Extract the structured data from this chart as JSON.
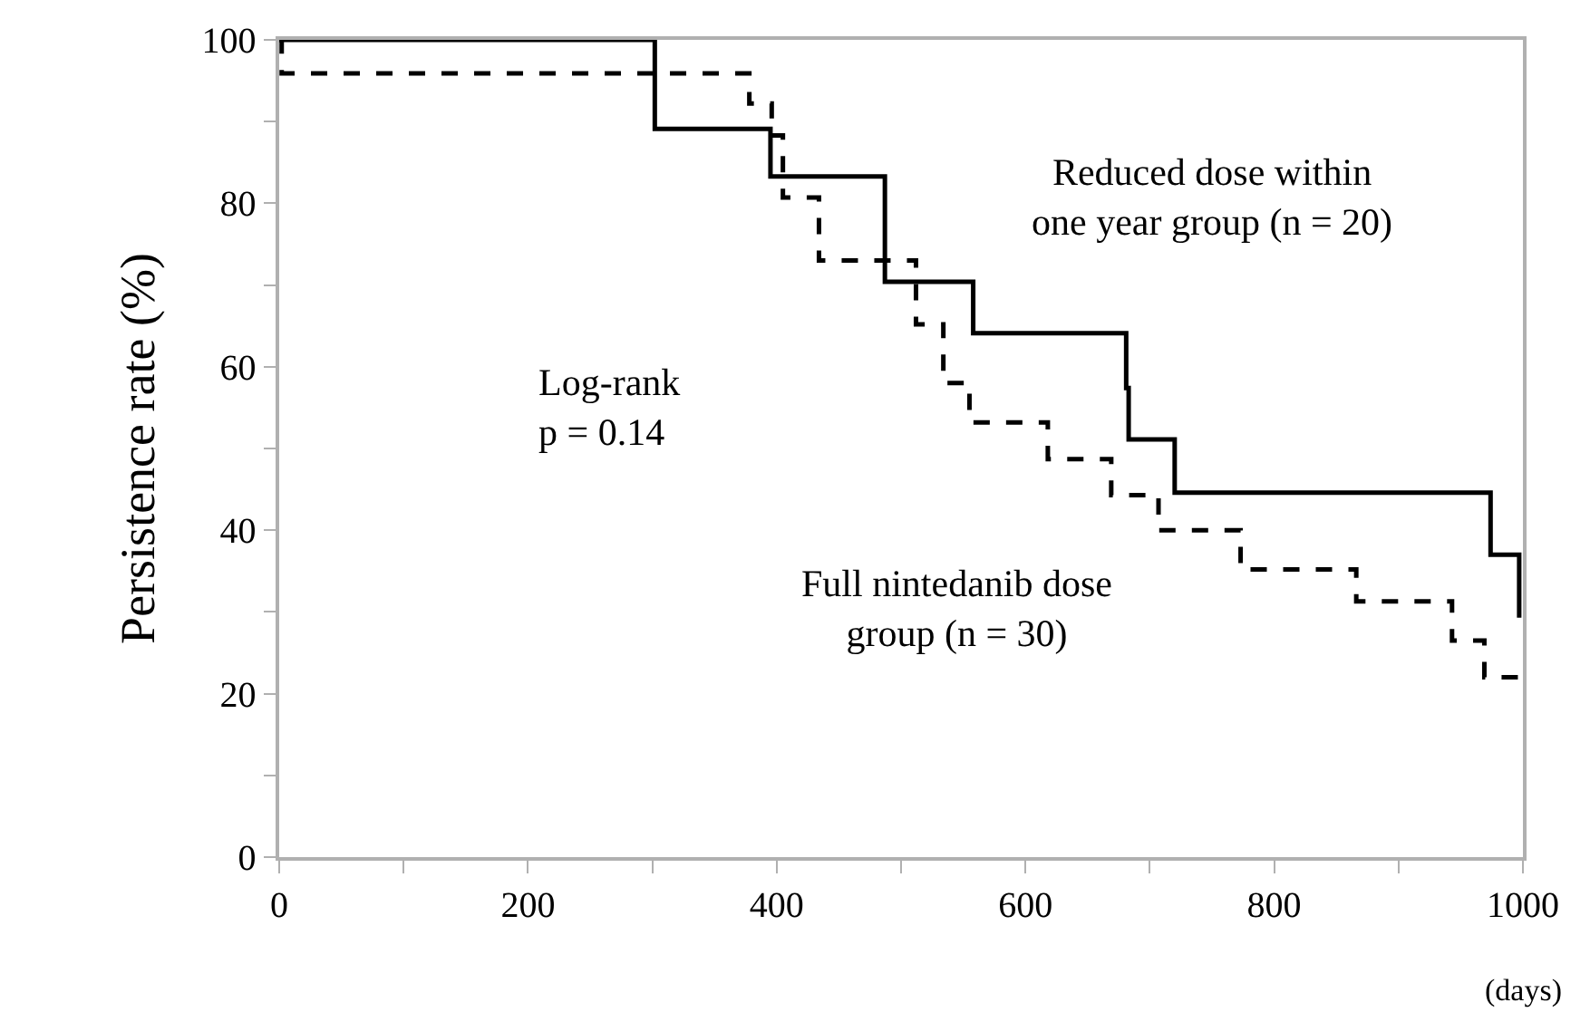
{
  "chart_data": {
    "type": "step",
    "xlabel": "(days)",
    "ylabel": "Persistence rate (%)",
    "xlim": [
      0,
      1000
    ],
    "ylim": [
      0,
      100
    ],
    "xticks": [
      0,
      {
        "value": 100,
        "label": null
      },
      200,
      {
        "value": 300,
        "label": null
      },
      400,
      {
        "value": 500,
        "label": null
      },
      600,
      {
        "value": 700,
        "label": null
      },
      800,
      {
        "value": 900,
        "label": null
      },
      1000
    ],
    "yticks": [
      0,
      {
        "value": 10,
        "label": null
      },
      20,
      {
        "value": 30,
        "label": null
      },
      40,
      {
        "value": 50,
        "label": null
      },
      60,
      {
        "value": 70,
        "label": null
      },
      80,
      {
        "value": 90,
        "label": null
      },
      100
    ],
    "grid": false,
    "marker": "none",
    "series": [
      {
        "color": "#000000",
        "line_style": "solid",
        "x": [
          0,
          302,
          395,
          487,
          558,
          681,
          683,
          720,
          974,
          997
        ],
        "values": [
          100,
          89.1,
          83.3,
          70.4,
          64.1,
          57.4,
          51.1,
          44.6,
          37,
          29.3
        ]
      },
      {
        "color": "#000000",
        "line_style": "dashed",
        "x": [
          0,
          2,
          378,
          396,
          405,
          434,
          512,
          534,
          555,
          618,
          669,
          707,
          773,
          866,
          943,
          969,
          997
        ],
        "values": [
          100,
          95.9,
          92.2,
          88.3,
          80.7,
          73,
          65.2,
          58,
          53.2,
          48.7,
          44.3,
          40,
          35.2,
          31.3,
          26.5,
          22,
          22
        ]
      }
    ],
    "annotations": [
      "Reduced dose within\none year group (n = 20)",
      "Log-rank\np = 0.14",
      "Full nintedanib dose\ngroup (n = 30)"
    ]
  }
}
